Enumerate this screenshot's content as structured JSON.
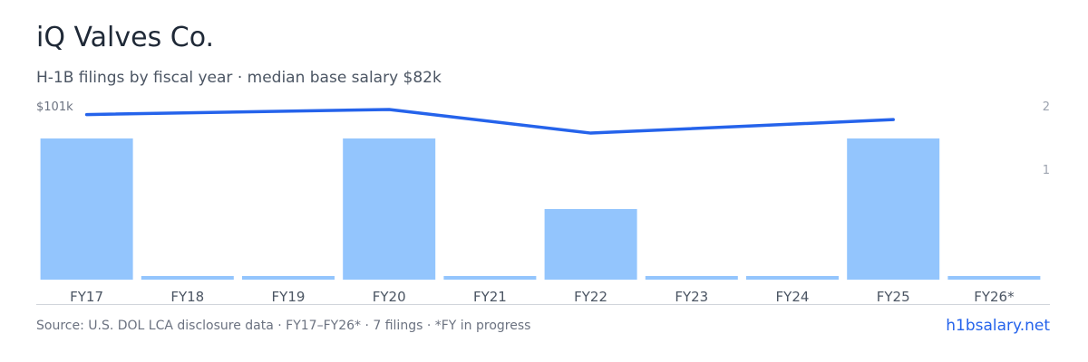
{
  "header": {
    "title": "iQ Valves Co.",
    "subtitle": "H-1B filings by fiscal year · median base salary $82k"
  },
  "axes": {
    "left_label": "$101k",
    "right_ticks": [
      "2",
      "1"
    ]
  },
  "footer": {
    "source": "Source: U.S. DOL LCA disclosure data · FY17–FY26* · 7 filings · *FY in progress",
    "brand": "h1bsalary.net"
  },
  "colors": {
    "bar": "#93c5fd",
    "line": "#2563eb",
    "brand": "#2563eb"
  },
  "chart_data": {
    "type": "bar",
    "categories": [
      "FY17",
      "FY18",
      "FY19",
      "FY20",
      "FY21",
      "FY22",
      "FY23",
      "FY24",
      "FY25",
      "FY26*"
    ],
    "series": [
      {
        "type": "bar",
        "axis": "right",
        "values": [
          2,
          0,
          0,
          2,
          0,
          1,
          0,
          0,
          2,
          0
        ]
      },
      {
        "type": "line",
        "axis": "left",
        "points": [
          {
            "category": "FY17",
            "value": 98
          },
          {
            "category": "FY20",
            "value": 101
          },
          {
            "category": "FY22",
            "value": 87
          },
          {
            "category": "FY25",
            "value": 95
          }
        ]
      }
    ],
    "right_ylim": [
      0,
      2
    ],
    "left_max_label": "$101k",
    "grid": false
  }
}
